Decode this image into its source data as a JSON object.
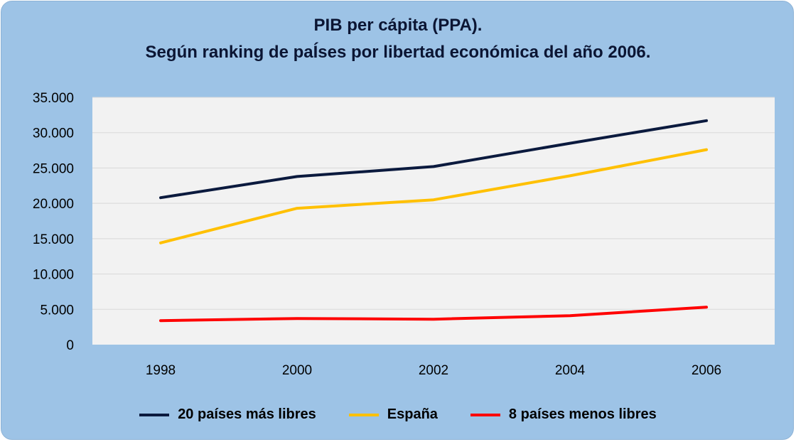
{
  "chart_data": {
    "type": "line",
    "title": "PIB per cápita (PPA).",
    "subtitle": "Según ranking de paÍses por libertad económica del año 2006.",
    "x": [
      "1998",
      "2000",
      "2002",
      "2004",
      "2006"
    ],
    "y_ticks": [
      "0",
      "5.000",
      "10.000",
      "15.000",
      "20.000",
      "25.000",
      "30.000",
      "35.000"
    ],
    "ylim": [
      0,
      35000
    ],
    "grid": true,
    "legend_position": "bottom",
    "series": [
      {
        "name": "20 países más libres",
        "color": "#0b1a3e",
        "values": [
          20800,
          23800,
          25200,
          28500,
          31700
        ]
      },
      {
        "name": "España",
        "color": "#ffc000",
        "values": [
          14400,
          19300,
          20500,
          23900,
          27600
        ]
      },
      {
        "name": "8 países menos libres",
        "color": "#ff0000",
        "values": [
          3400,
          3700,
          3600,
          4100,
          5300
        ]
      }
    ]
  }
}
